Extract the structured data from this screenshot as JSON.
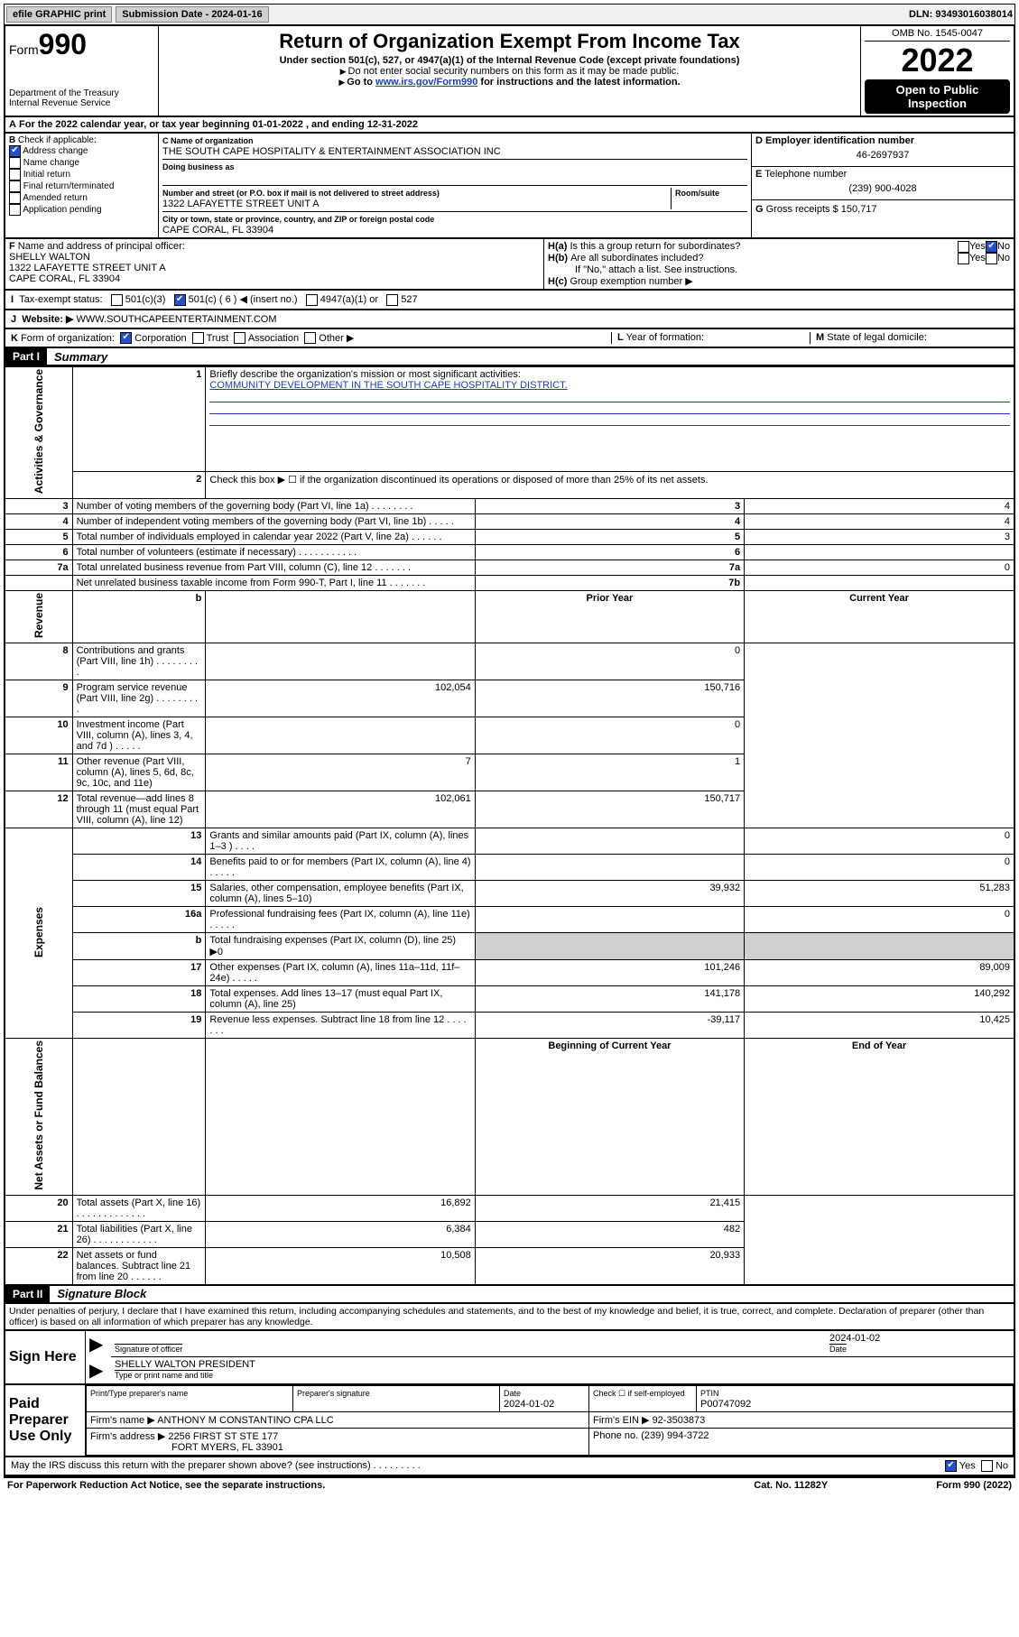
{
  "topbar": {
    "efile": "efile GRAPHIC print",
    "submission_label": "Submission Date - 2024-01-16",
    "dln": "DLN: 93493016038014"
  },
  "header": {
    "form_word": "Form",
    "form_num": "990",
    "dept": "Department of the Treasury",
    "irs": "Internal Revenue Service",
    "title": "Return of Organization Exempt From Income Tax",
    "sub1": "Under section 501(c), 527, or 4947(a)(1) of the Internal Revenue Code (except private foundations)",
    "sub2": "Do not enter social security numbers on this form as it may be made public.",
    "sub3_pre": "Go to ",
    "sub3_link": "www.irs.gov/Form990",
    "sub3_post": " for instructions and the latest information.",
    "omb": "OMB No. 1545-0047",
    "year": "2022",
    "open": "Open to Public Inspection"
  },
  "rowA": "For the 2022 calendar year, or tax year beginning 01-01-2022   , and ending 12-31-2022",
  "boxB": {
    "label": "Check if applicable:",
    "items": [
      "Address change",
      "Name change",
      "Initial return",
      "Final return/terminated",
      "Amended return",
      "Application pending"
    ],
    "checked_idx": 0,
    "letter": "B"
  },
  "boxC": {
    "name_lbl": "Name of organization",
    "name": "THE SOUTH CAPE HOSPITALITY & ENTERTAINMENT ASSOCIATION INC",
    "dba_lbl": "Doing business as",
    "addr_lbl": "Number and street (or P.O. box if mail is not delivered to street address)",
    "room_lbl": "Room/suite",
    "addr": "1322 LAFAYETTE STREET UNIT A",
    "city_lbl": "City or town, state or province, country, and ZIP or foreign postal code",
    "city": "CAPE CORAL, FL  33904",
    "letter": "C"
  },
  "boxD": {
    "lbl": "Employer identification number",
    "val": "46-2697937",
    "letter": "D"
  },
  "boxE": {
    "lbl": "Telephone number",
    "val": "(239) 900-4028",
    "letter": "E"
  },
  "boxG": {
    "lbl": "Gross receipts $",
    "val": "150,717",
    "letter": "G"
  },
  "boxF": {
    "lbl": "Name and address of principal officer:",
    "name": "SHELLY WALTON",
    "addr1": "1322 LAFAYETTE STREET UNIT A",
    "addr2": "CAPE CORAL, FL  33904",
    "letter": "F"
  },
  "boxH": {
    "a": "Is this a group return for subordinates?",
    "b": "Are all subordinates included?",
    "note": "If \"No,\" attach a list. See instructions.",
    "c": "Group exemption number ▶",
    "yes": "Yes",
    "no": "No"
  },
  "rowI": {
    "lbl": "Tax-exempt status:",
    "opts": [
      "501(c)(3)",
      "501(c) ( 6 ) ◀ (insert no.)",
      "4947(a)(1) or",
      "527"
    ],
    "letter": "I"
  },
  "rowJ": {
    "lbl": "Website: ▶",
    "val": "WWW.SOUTHCAPEENTERTAINMENT.COM",
    "letter": "J"
  },
  "rowK": {
    "lbl": "Form of organization:",
    "opts": [
      "Corporation",
      "Trust",
      "Association",
      "Other ▶"
    ],
    "l_lbl": "Year of formation:",
    "m_lbl": "State of legal domicile:",
    "letter": "K",
    "l_letter": "L",
    "m_letter": "M"
  },
  "part1": {
    "tag": "Part I",
    "title": "Summary"
  },
  "summary": {
    "q1_lbl": "Briefly describe the organization's mission or most significant activities:",
    "q1_val": "COMMUNITY DEVELOPMENT IN THE SOUTH CAPE HOSPITALITY DISTRICT.",
    "q2": "Check this box ▶ ☐  if the organization discontinued its operations or disposed of more than 25% of its net assets.",
    "sections": {
      "gov": "Activities & Governance",
      "rev": "Revenue",
      "exp": "Expenses",
      "net": "Net Assets or Fund Balances"
    },
    "gov_rows": [
      {
        "n": "3",
        "t": "Number of voting members of the governing body (Part VI, line 1a)   .    .    .    .    .    .    .    .",
        "box": "3",
        "v": "4"
      },
      {
        "n": "4",
        "t": "Number of independent voting members of the governing body (Part VI, line 1b)   .    .    .    .    .",
        "box": "4",
        "v": "4"
      },
      {
        "n": "5",
        "t": "Total number of individuals employed in calendar year 2022 (Part V, line 2a)   .    .    .    .    .    .",
        "box": "5",
        "v": "3"
      },
      {
        "n": "6",
        "t": "Total number of volunteers (estimate if necessary)   .    .    .    .    .    .    .    .    .    .    .",
        "box": "6",
        "v": ""
      },
      {
        "n": "7a",
        "t": "Total unrelated business revenue from Part VIII, column (C), line 12   .    .    .    .    .    .    .",
        "box": "7a",
        "v": "0"
      },
      {
        "n": "",
        "t": "Net unrelated business taxable income from Form 990-T, Part I, line 11   .    .    .    .    .    .    .",
        "box": "7b",
        "v": ""
      }
    ],
    "col_hdrs": {
      "b": "b",
      "prior": "Prior Year",
      "cur": "Current Year",
      "beg": "Beginning of Current Year",
      "end": "End of Year"
    },
    "rev_rows": [
      {
        "n": "8",
        "t": "Contributions and grants (Part VIII, line 1h)   .    .    .    .    .    .    .    .    .",
        "p": "",
        "c": "0"
      },
      {
        "n": "9",
        "t": "Program service revenue (Part VIII, line 2g)   .    .    .    .    .    .    .    .    .",
        "p": "102,054",
        "c": "150,716"
      },
      {
        "n": "10",
        "t": "Investment income (Part VIII, column (A), lines 3, 4, and 7d )   .    .    .    .    .",
        "p": "",
        "c": "0"
      },
      {
        "n": "11",
        "t": "Other revenue (Part VIII, column (A), lines 5, 6d, 8c, 9c, 10c, and 11e)",
        "p": "7",
        "c": "1"
      },
      {
        "n": "12",
        "t": "Total revenue—add lines 8 through 11 (must equal Part VIII, column (A), line 12)",
        "p": "102,061",
        "c": "150,717"
      }
    ],
    "exp_rows": [
      {
        "n": "13",
        "t": "Grants and similar amounts paid (Part IX, column (A), lines 1–3 )   .    .    .    .",
        "p": "",
        "c": "0"
      },
      {
        "n": "14",
        "t": "Benefits paid to or for members (Part IX, column (A), line 4)   .    .    .    .    .",
        "p": "",
        "c": "0"
      },
      {
        "n": "15",
        "t": "Salaries, other compensation, employee benefits (Part IX, column (A), lines 5–10)",
        "p": "39,932",
        "c": "51,283"
      },
      {
        "n": "16a",
        "t": "Professional fundraising fees (Part IX, column (A), line 11e)   .    .    .    .    .",
        "p": "",
        "c": "0"
      },
      {
        "n": "b",
        "t": "Total fundraising expenses (Part IX, column (D), line 25) ▶0",
        "p": "SHADE",
        "c": "SHADE"
      },
      {
        "n": "17",
        "t": "Other expenses (Part IX, column (A), lines 11a–11d, 11f–24e)   .    .    .    .    .",
        "p": "101,246",
        "c": "89,009"
      },
      {
        "n": "18",
        "t": "Total expenses. Add lines 13–17 (must equal Part IX, column (A), line 25)",
        "p": "141,178",
        "c": "140,292"
      },
      {
        "n": "19",
        "t": "Revenue less expenses. Subtract line 18 from line 12   .    .    .    .    .    .    .",
        "p": "-39,117",
        "c": "10,425"
      }
    ],
    "net_rows": [
      {
        "n": "20",
        "t": "Total assets (Part X, line 16)   .    .    .    .    .    .    .    .    .    .    .    .    .",
        "p": "16,892",
        "c": "21,415"
      },
      {
        "n": "21",
        "t": "Total liabilities (Part X, line 26)   .    .    .    .    .    .    .    .    .    .    .    .",
        "p": "6,384",
        "c": "482"
      },
      {
        "n": "22",
        "t": "Net assets or fund balances. Subtract line 21 from line 20   .    .    .    .    .    .",
        "p": "10,508",
        "c": "20,933"
      }
    ]
  },
  "part2": {
    "tag": "Part II",
    "title": "Signature Block"
  },
  "penalties": "Under penalties of perjury, I declare that I have examined this return, including accompanying schedules and statements, and to the best of my knowledge and belief, it is true, correct, and complete. Declaration of preparer (other than officer) is based on all information of which preparer has any knowledge.",
  "sign": {
    "side": "Sign Here",
    "sig_lbl": "Signature of officer",
    "date_lbl": "Date",
    "date": "2024-01-02",
    "name": "SHELLY WALTON  PRESIDENT",
    "name_lbl": "Type or print name and title"
  },
  "paid": {
    "side": "Paid Preparer Use Only",
    "h1": "Print/Type preparer's name",
    "h2": "Preparer's signature",
    "h3": "Date",
    "h4": "Check ☐ if self-employed",
    "h5": "PTIN",
    "date": "2024-01-02",
    "ptin": "P00747092",
    "firm_lbl": "Firm's name    ▶",
    "firm": "ANTHONY M CONSTANTINO CPA LLC",
    "ein_lbl": "Firm's EIN ▶",
    "ein": "92-3503873",
    "addr_lbl": "Firm's address ▶",
    "addr1": "2256 FIRST ST STE 177",
    "addr2": "FORT MYERS, FL  33901",
    "phone_lbl": "Phone no.",
    "phone": "(239) 994-3722"
  },
  "discuss": {
    "q": "May the IRS discuss this return with the preparer shown above? (see instructions)   .    .    .    .    .    .    .    .    .",
    "yes": "Yes",
    "no": "No"
  },
  "footer": {
    "l": "For Paperwork Reduction Act Notice, see the separate instructions.",
    "m": "Cat. No. 11282Y",
    "r": "Form 990 (2022)"
  }
}
